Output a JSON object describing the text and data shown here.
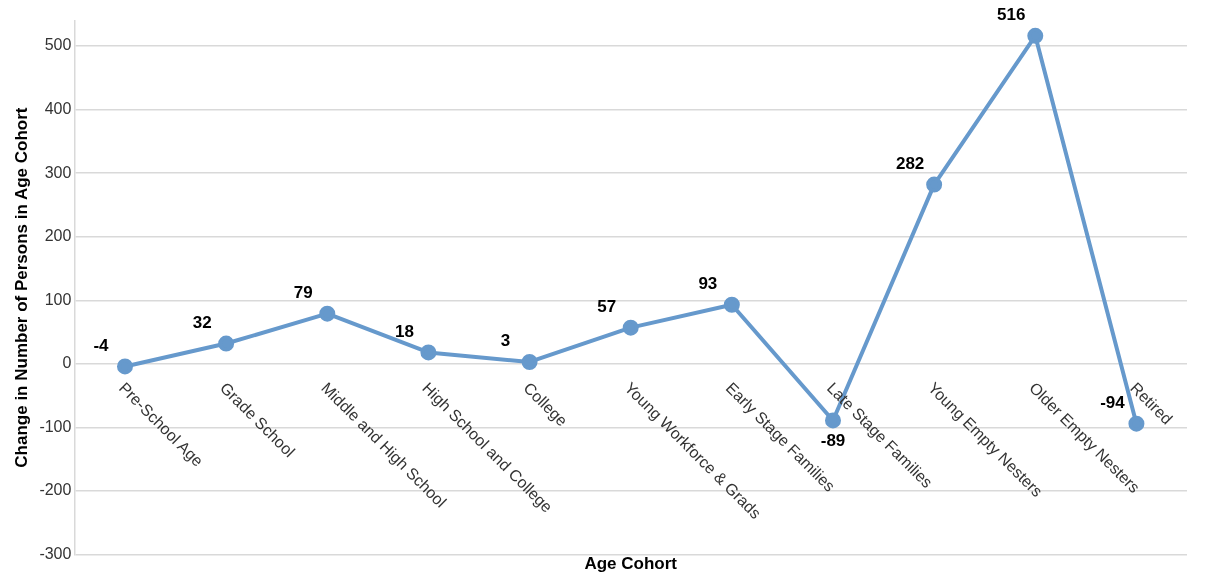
{
  "chart_data": {
    "type": "line",
    "xlabel": "Age Cohort",
    "ylabel": "Change in Number of Persons in Age Cohort",
    "categories": [
      "Pre-School Age",
      "Grade School",
      "Middle and High School",
      "High School and College",
      "College",
      "Young Workforce & Grads",
      "Early Stage Families",
      "Late Stage Families",
      "Young Empty Nesters",
      "Older Empty Nesters",
      "Retired"
    ],
    "series": [
      {
        "color": "#6699cc",
        "values": [
          -4,
          32,
          79,
          18,
          3,
          57,
          93,
          -89,
          282,
          516,
          -94
        ]
      }
    ],
    "ylim": [
      -300,
      540
    ],
    "yticks": [
      -300,
      -200,
      -100,
      0,
      100,
      200,
      300,
      400,
      500
    ],
    "grid": "y",
    "legend": false,
    "marker": "circle",
    "line_style": "solid",
    "data_labels": true
  }
}
